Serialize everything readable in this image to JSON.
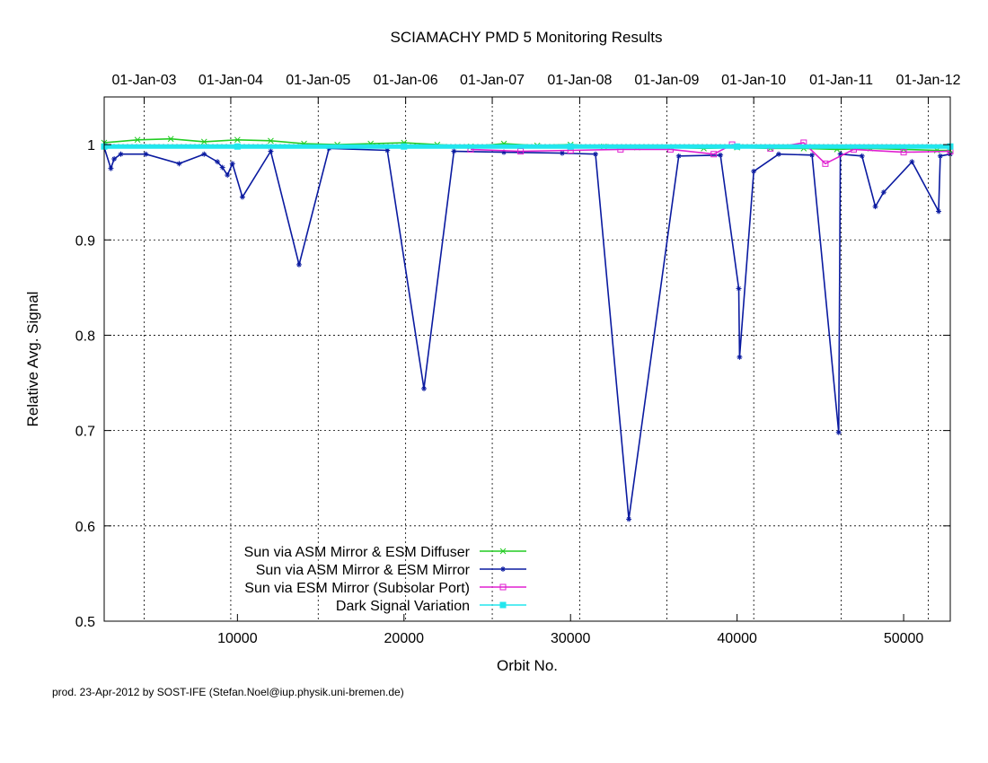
{
  "chart_data": {
    "type": "line",
    "title": "SCIAMACHY PMD 5 Monitoring Results",
    "xlabel": "Orbit No.",
    "ylabel": "Relative Avg. Signal",
    "xlim": [
      2000,
      52800
    ],
    "ylim": [
      0.5,
      1.05
    ],
    "x_ticks": [
      10000,
      20000,
      30000,
      40000,
      50000
    ],
    "y_ticks": [
      0.5,
      0.6,
      0.7,
      0.8,
      0.9,
      1.0
    ],
    "y_tick_labels": [
      "0.5",
      "0.6",
      "0.7",
      "0.8",
      "0.9",
      "1"
    ],
    "grid": true,
    "legend_position": "bottom-left",
    "top_axis": [
      {
        "label": "01-Jan-03",
        "orbit": 4400
      },
      {
        "label": "01-Jan-04",
        "orbit": 9600
      },
      {
        "label": "01-Jan-05",
        "orbit": 14850
      },
      {
        "label": "01-Jan-06",
        "orbit": 20100
      },
      {
        "label": "01-Jan-07",
        "orbit": 25300
      },
      {
        "label": "01-Jan-08",
        "orbit": 30550
      },
      {
        "label": "01-Jan-09",
        "orbit": 35780
      },
      {
        "label": "01-Jan-10",
        "orbit": 41000
      },
      {
        "label": "01-Jan-11",
        "orbit": 46250
      },
      {
        "label": "01-Jan-12",
        "orbit": 51480
      }
    ],
    "series": [
      {
        "name": "Sun via ASM Mirror & ESM Diffuser",
        "color": "#22cc22",
        "marker": "x",
        "x": [
          2000,
          4000,
          6000,
          8000,
          10000,
          12000,
          14000,
          16000,
          18000,
          20000,
          22000,
          24000,
          26000,
          28000,
          30000,
          32000,
          34000,
          36000,
          38000,
          40000,
          42000,
          44000,
          46000,
          48000,
          50000,
          52000,
          52800
        ],
        "y": [
          1.002,
          1.005,
          1.006,
          1.003,
          1.005,
          1.004,
          1.001,
          1.0,
          1.001,
          1.002,
          1.0,
          0.998,
          1.001,
          0.999,
          1.0,
          0.998,
          0.997,
          0.997,
          0.996,
          0.997,
          0.996,
          0.996,
          0.995,
          0.996,
          0.995,
          0.994,
          0.994
        ]
      },
      {
        "name": "Sun via ASM Mirror & ESM Mirror",
        "color": "#0a1aa0",
        "marker": "*",
        "x": [
          2000,
          2400,
          2600,
          3000,
          4500,
          6500,
          8000,
          8800,
          9100,
          9400,
          9700,
          10300,
          12000,
          13700,
          15500,
          19000,
          21200,
          23000,
          26000,
          29500,
          31500,
          33500,
          36500,
          39000,
          40100,
          40150,
          41000,
          42500,
          44500,
          46100,
          46200,
          47500,
          48300,
          48800,
          50500,
          52100,
          52200,
          52800
        ],
        "y": [
          0.997,
          0.975,
          0.985,
          0.99,
          0.99,
          0.98,
          0.99,
          0.982,
          0.976,
          0.968,
          0.98,
          0.945,
          0.993,
          0.874,
          0.996,
          0.994,
          0.744,
          0.993,
          0.992,
          0.991,
          0.99,
          0.607,
          0.988,
          0.989,
          0.849,
          0.777,
          0.972,
          0.99,
          0.989,
          0.698,
          0.99,
          0.988,
          0.935,
          0.95,
          0.982,
          0.93,
          0.988,
          0.99
        ]
      },
      {
        "name": "Sun via ESM Mirror (Subsolar Port)",
        "color": "#e020d0",
        "marker": "square",
        "x": [
          24000,
          27000,
          30000,
          33000,
          36000,
          38600,
          39700,
          42000,
          44000,
          45300,
          47000,
          50000,
          52800
        ],
        "y": [
          0.995,
          0.993,
          0.994,
          0.995,
          0.995,
          0.99,
          1.0,
          0.996,
          1.002,
          0.98,
          0.995,
          0.992,
          0.993
        ]
      },
      {
        "name": "Dark Signal Variation",
        "color": "#22e6ee",
        "marker": "filled-square",
        "x": [
          2000,
          10000,
          20000,
          30000,
          40000,
          52800
        ],
        "y": [
          0.998,
          0.998,
          0.998,
          0.998,
          0.998,
          0.998
        ]
      }
    ]
  },
  "footer": "prod. 23-Apr-2012 by SOST-IFE (Stefan.Noel@iup.physik.uni-bremen.de)"
}
